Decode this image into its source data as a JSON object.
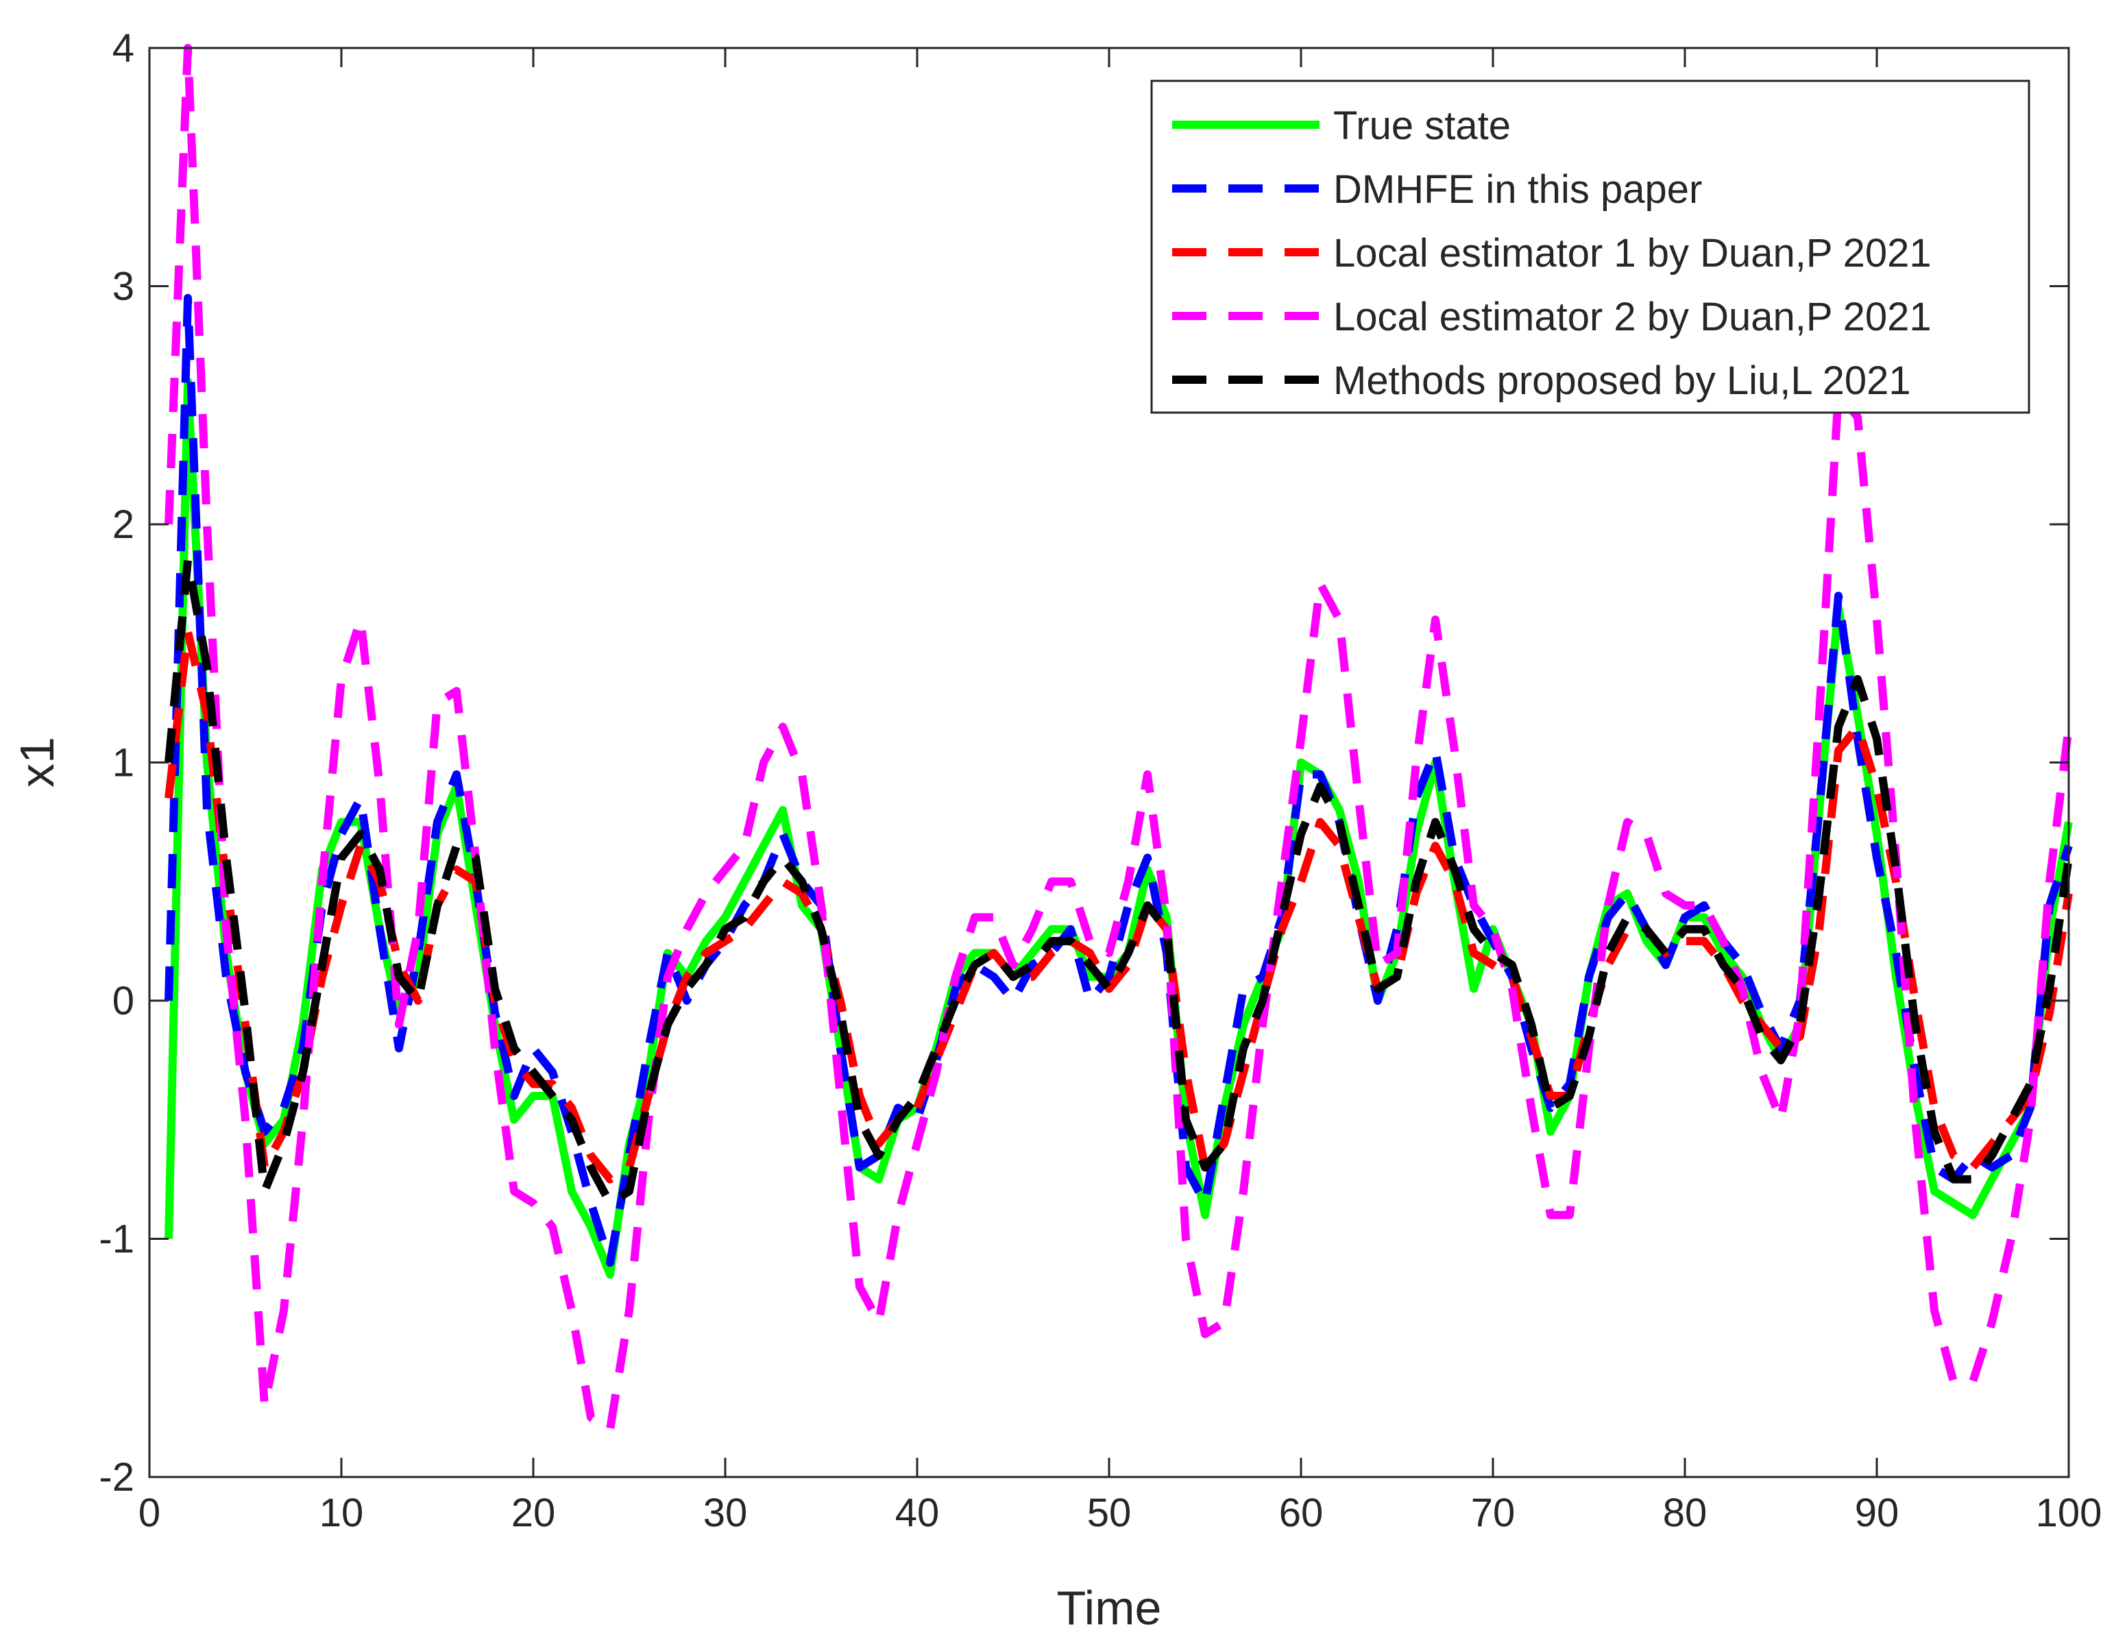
{
  "chart_data": {
    "type": "line",
    "xlabel": "Time",
    "ylabel": "x1",
    "xlim": [
      0,
      100
    ],
    "ylim": [
      -2,
      4
    ],
    "xticks": [
      0,
      10,
      20,
      30,
      40,
      50,
      60,
      70,
      80,
      90,
      100
    ],
    "yticks": [
      -2,
      -1,
      0,
      1,
      2,
      3,
      4
    ],
    "xtick_labels": [
      "0",
      "10",
      "20",
      "30",
      "40",
      "50",
      "60",
      "70",
      "80",
      "90",
      "100"
    ],
    "ytick_labels": [
      "-2",
      "-1",
      "0",
      "1",
      "2",
      "3",
      "4"
    ],
    "grid": false,
    "legend_position": "top-right",
    "x": [
      1,
      2,
      3,
      4,
      5,
      6,
      7,
      8,
      9,
      10,
      11,
      12,
      13,
      14,
      15,
      16,
      17,
      18,
      19,
      20,
      21,
      22,
      23,
      24,
      25,
      26,
      27,
      28,
      29,
      30,
      31,
      32,
      33,
      34,
      35,
      36,
      37,
      38,
      39,
      40,
      41,
      42,
      43,
      44,
      45,
      46,
      47,
      48,
      49,
      50,
      51,
      52,
      53,
      54,
      55,
      56,
      57,
      58,
      59,
      60,
      61,
      62,
      63,
      64,
      65,
      66,
      67,
      68,
      69,
      70,
      71,
      72,
      73,
      74,
      75,
      76,
      77,
      78,
      79,
      80,
      81,
      82,
      83,
      84,
      85,
      86,
      87,
      88,
      89,
      90,
      91,
      92,
      93,
      94,
      95,
      96,
      97,
      98,
      99,
      100
    ],
    "series": [
      {
        "name": "True state",
        "color": "#00ff00",
        "style": "solid",
        "values": [
          -1.0,
          2.6,
          1.0,
          0.2,
          -0.3,
          -0.6,
          -0.5,
          -0.1,
          0.55,
          0.75,
          0.75,
          0.3,
          -0.05,
          0.1,
          0.7,
          0.9,
          0.4,
          -0.1,
          -0.5,
          -0.4,
          -0.4,
          -0.8,
          -0.95,
          -1.15,
          -0.6,
          -0.3,
          0.2,
          0.1,
          0.25,
          0.35,
          0.5,
          0.65,
          0.8,
          0.4,
          0.3,
          -0.2,
          -0.7,
          -0.75,
          -0.5,
          -0.45,
          -0.2,
          0.1,
          0.2,
          0.2,
          0.1,
          0.2,
          0.3,
          0.3,
          0.1,
          0.1,
          0.2,
          0.55,
          0.35,
          -0.5,
          -0.9,
          -0.45,
          -0.1,
          0.1,
          0.3,
          1.0,
          0.95,
          0.8,
          0.5,
          0.0,
          0.2,
          0.7,
          1.0,
          0.5,
          0.05,
          0.3,
          0.1,
          -0.1,
          -0.55,
          -0.4,
          0.1,
          0.4,
          0.45,
          0.25,
          0.15,
          0.35,
          0.35,
          0.2,
          0.1,
          -0.1,
          -0.25,
          -0.1,
          0.8,
          1.65,
          1.2,
          0.7,
          0.1,
          -0.4,
          -0.8,
          -0.85,
          -0.9,
          -0.75,
          -0.6,
          -0.45,
          0.3,
          0.75
        ]
      },
      {
        "name": "DMHFE in this paper",
        "color": "#0000ff",
        "style": "dashed",
        "values": [
          0.0,
          2.95,
          0.8,
          0.1,
          -0.3,
          -0.55,
          -0.45,
          -0.2,
          0.4,
          0.7,
          0.85,
          0.3,
          -0.2,
          0.2,
          0.75,
          0.95,
          0.5,
          -0.05,
          -0.4,
          -0.2,
          -0.3,
          -0.55,
          -0.85,
          -1.1,
          -0.65,
          -0.2,
          0.2,
          0.0,
          0.15,
          0.25,
          0.4,
          0.5,
          0.7,
          0.5,
          0.4,
          -0.2,
          -0.7,
          -0.65,
          -0.45,
          -0.5,
          -0.25,
          0.05,
          0.15,
          0.1,
          0.0,
          0.15,
          0.2,
          0.3,
          0.0,
          0.1,
          0.4,
          0.6,
          0.2,
          -0.7,
          -0.85,
          -0.4,
          0.05,
          0.1,
          0.35,
          0.95,
          0.95,
          0.75,
          0.35,
          0.0,
          0.3,
          0.85,
          1.05,
          0.6,
          0.4,
          0.25,
          0.1,
          -0.2,
          -0.45,
          -0.35,
          0.1,
          0.35,
          0.45,
          0.3,
          0.15,
          0.35,
          0.4,
          0.25,
          0.15,
          -0.05,
          -0.2,
          0.0,
          0.8,
          1.7,
          1.1,
          0.6,
          0.2,
          -0.3,
          -0.7,
          -0.75,
          -0.65,
          -0.7,
          -0.65,
          -0.45,
          0.4,
          0.65
        ]
      },
      {
        "name": "Local estimator 1 by Duan,P 2021",
        "color": "#ff0000",
        "style": "dashed",
        "values": [
          0.85,
          1.55,
          1.2,
          0.5,
          -0.1,
          -0.7,
          -0.55,
          -0.3,
          0.1,
          0.4,
          0.65,
          0.5,
          0.15,
          0.0,
          0.4,
          0.55,
          0.5,
          0.0,
          -0.25,
          -0.35,
          -0.35,
          -0.45,
          -0.65,
          -0.75,
          -0.7,
          -0.4,
          -0.1,
          0.1,
          0.2,
          0.25,
          0.3,
          0.4,
          0.5,
          0.45,
          0.3,
          0.0,
          -0.4,
          -0.6,
          -0.5,
          -0.45,
          -0.25,
          -0.05,
          0.15,
          0.2,
          0.1,
          0.1,
          0.2,
          0.25,
          0.2,
          0.05,
          0.15,
          0.4,
          0.3,
          -0.3,
          -0.7,
          -0.6,
          -0.3,
          0.0,
          0.3,
          0.5,
          0.75,
          0.65,
          0.35,
          0.05,
          0.1,
          0.45,
          0.65,
          0.5,
          0.2,
          0.15,
          0.1,
          -0.15,
          -0.4,
          -0.4,
          -0.1,
          0.15,
          0.3,
          0.3,
          0.2,
          0.25,
          0.25,
          0.15,
          0.0,
          -0.1,
          -0.2,
          -0.15,
          0.3,
          1.05,
          1.15,
          0.9,
          0.5,
          0.0,
          -0.45,
          -0.65,
          -0.7,
          -0.6,
          -0.5,
          -0.4,
          -0.05,
          0.45
        ]
      },
      {
        "name": "Local estimator 2 by Duan,P 2021",
        "color": "#ff00ff",
        "style": "dashed",
        "values": [
          2.0,
          4.0,
          2.0,
          0.3,
          -0.5,
          -1.7,
          -1.3,
          -0.5,
          0.5,
          1.35,
          1.6,
          0.9,
          -0.1,
          0.3,
          1.25,
          1.3,
          0.6,
          -0.2,
          -0.8,
          -0.85,
          -0.95,
          -1.3,
          -1.75,
          -1.8,
          -1.3,
          -0.5,
          0.1,
          0.3,
          0.45,
          0.55,
          0.65,
          1.0,
          1.15,
          0.95,
          0.4,
          -0.4,
          -1.2,
          -1.35,
          -0.9,
          -0.6,
          -0.3,
          0.1,
          0.35,
          0.35,
          0.15,
          0.3,
          0.5,
          0.5,
          0.25,
          0.2,
          0.5,
          0.95,
          0.35,
          -1.0,
          -1.4,
          -1.35,
          -0.8,
          -0.1,
          0.5,
          1.1,
          1.75,
          1.6,
          0.85,
          0.15,
          0.2,
          1.0,
          1.6,
          1.05,
          0.4,
          0.3,
          0.05,
          -0.45,
          -0.9,
          -0.9,
          -0.2,
          0.4,
          0.75,
          0.7,
          0.45,
          0.4,
          0.4,
          0.25,
          0.05,
          -0.3,
          -0.5,
          -0.05,
          1.2,
          2.55,
          2.45,
          1.6,
          0.6,
          -0.5,
          -1.3,
          -1.6,
          -1.6,
          -1.35,
          -1.0,
          -0.5,
          0.5,
          1.15
        ]
      },
      {
        "name": "Methods proposed by Liu,L 2021",
        "color": "#000000",
        "style": "dashed",
        "values": [
          1.0,
          1.85,
          1.4,
          0.6,
          -0.05,
          -0.8,
          -0.6,
          -0.3,
          0.15,
          0.6,
          0.7,
          0.55,
          0.1,
          0.0,
          0.4,
          0.65,
          0.6,
          0.05,
          -0.2,
          -0.3,
          -0.4,
          -0.5,
          -0.7,
          -0.85,
          -0.8,
          -0.4,
          -0.1,
          0.05,
          0.15,
          0.3,
          0.35,
          0.5,
          0.6,
          0.5,
          0.3,
          -0.05,
          -0.5,
          -0.65,
          -0.5,
          -0.4,
          -0.2,
          0.0,
          0.15,
          0.2,
          0.1,
          0.15,
          0.25,
          0.25,
          0.15,
          0.05,
          0.2,
          0.4,
          0.3,
          -0.5,
          -0.7,
          -0.6,
          -0.2,
          0.0,
          0.35,
          0.7,
          0.9,
          0.75,
          0.4,
          0.05,
          0.1,
          0.5,
          0.75,
          0.55,
          0.3,
          0.2,
          0.15,
          -0.1,
          -0.45,
          -0.4,
          -0.15,
          0.2,
          0.35,
          0.3,
          0.2,
          0.3,
          0.3,
          0.15,
          0.05,
          -0.15,
          -0.25,
          -0.1,
          0.45,
          1.15,
          1.35,
          1.1,
          0.55,
          -0.1,
          -0.55,
          -0.75,
          -0.75,
          -0.65,
          -0.5,
          -0.35,
          0.05,
          0.6
        ]
      }
    ]
  }
}
